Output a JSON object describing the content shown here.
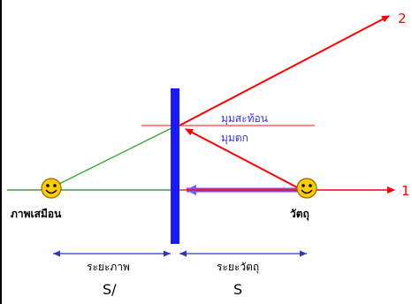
{
  "labels": {
    "image": "ภาพเสมือน",
    "object": "วัตถุ",
    "angle_reflection": "มุมสะท้อน",
    "angle_incidence": "มุมตก",
    "ray1": "1",
    "ray2": "2",
    "image_distance": "ระยะภาพ",
    "object_distance": "ระยะวัตถุ",
    "s_prime": "S/",
    "s": "S"
  },
  "colors": {
    "mirror": "#1a1aff",
    "ray": "#ff0000",
    "normal_line": "#ff3333",
    "virtual_ray": "#33aa33",
    "axis": "#33aa33",
    "dimension": "#3333cc",
    "angle_text": "#3333ff",
    "border": "#000000",
    "face_fill": "#ffcc00"
  },
  "icons": {
    "image": "smiley-face-icon",
    "object": "smiley-face-icon"
  }
}
